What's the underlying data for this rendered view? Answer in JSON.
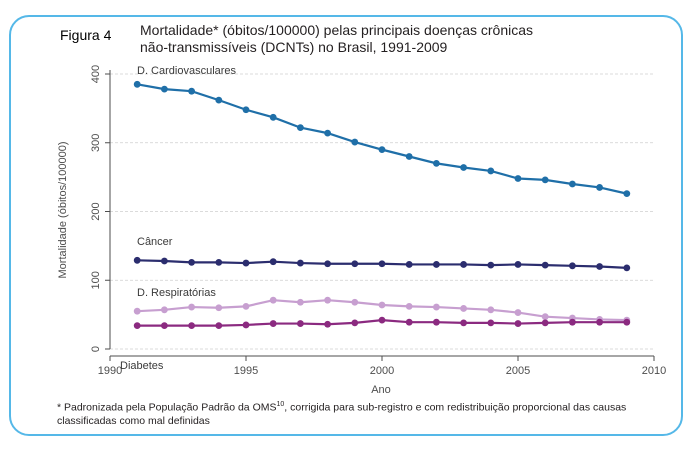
{
  "figure_label": "Figura 4",
  "footnote": {
    "prefix": "* Padronizada pela População Padrão da OMS",
    "superscript": "10",
    "suffix": ", corrigida para sub-registro e com redistribuição proporcional das causas classificadas como mal definidas"
  },
  "chart_data": {
    "type": "line",
    "title": "Mortalidade* (óbitos/100000) pelas principais doenças crônicas\nnão-transmissíveis (DCNTs) no Brasil, 1991-2009",
    "xlabel": "Ano",
    "ylabel": "Mortalidade (óbitos/100000)",
    "xlim": [
      1990,
      2010
    ],
    "ylim": [
      0,
      400
    ],
    "xticks": [
      1990,
      1995,
      2000,
      2005,
      2010
    ],
    "yticks": [
      0,
      100,
      200,
      300,
      400
    ],
    "grid": true,
    "x": [
      1991,
      1992,
      1993,
      1994,
      1995,
      1996,
      1997,
      1998,
      1999,
      2000,
      2001,
      2002,
      2003,
      2004,
      2005,
      2006,
      2007,
      2008,
      2009
    ],
    "series": [
      {
        "name": "D. Cardiovasculares",
        "color": "#1f6fa8",
        "values": [
          385,
          378,
          375,
          362,
          348,
          337,
          322,
          314,
          301,
          290,
          280,
          270,
          264,
          259,
          248,
          246,
          240,
          235,
          226
        ]
      },
      {
        "name": "Câncer",
        "color": "#2b2d6e",
        "values": [
          129,
          128,
          126,
          126,
          125,
          127,
          125,
          124,
          124,
          124,
          123,
          123,
          123,
          122,
          123,
          122,
          121,
          120,
          118
        ]
      },
      {
        "name": "D. Respiratórias",
        "color": "#c79fd0",
        "values": [
          55,
          57,
          61,
          60,
          62,
          71,
          68,
          71,
          68,
          64,
          62,
          61,
          59,
          57,
          53,
          47,
          45,
          43,
          42
        ]
      },
      {
        "name": "Diabetes",
        "color": "#8b2a80",
        "values": [
          34,
          34,
          34,
          34,
          35,
          37,
          37,
          36,
          38,
          42,
          39,
          39,
          38,
          38,
          37,
          38,
          39,
          39,
          39
        ]
      }
    ]
  }
}
